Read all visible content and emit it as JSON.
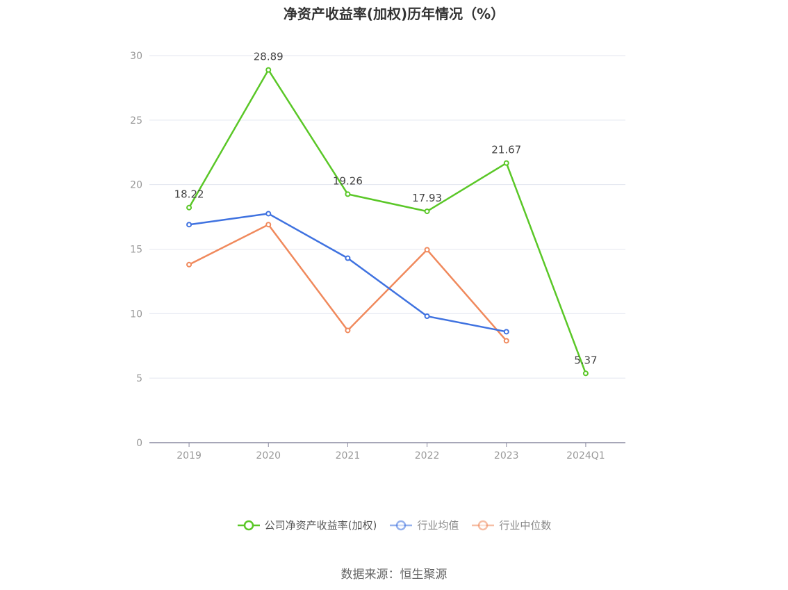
{
  "chart_data": {
    "type": "line",
    "title": "净资产收益率(加权)历年情况（%）",
    "categories": [
      "2019",
      "2020",
      "2021",
      "2022",
      "2023",
      "2024Q1"
    ],
    "ylim": [
      0,
      30
    ],
    "yticks": [
      0,
      5,
      10,
      15,
      20,
      25,
      30
    ],
    "grid": true,
    "legend_position": "bottom",
    "series": [
      {
        "name": "公司净资产收益率(加权)",
        "color": "#5ac727",
        "values": [
          18.22,
          28.89,
          19.26,
          17.93,
          21.67,
          5.37
        ],
        "labels": [
          "18.22",
          "28.89",
          "19.26",
          "17.93",
          "21.67",
          "5.37"
        ]
      },
      {
        "name": "行业均值",
        "color": "#3f72e0",
        "values": [
          16.9,
          17.75,
          14.3,
          9.8,
          8.6,
          null
        ]
      },
      {
        "name": "行业中位数",
        "color": "#f0895c",
        "values": [
          13.8,
          16.9,
          8.7,
          14.95,
          7.9,
          null
        ]
      }
    ]
  },
  "source": "数据来源：恒生聚源"
}
